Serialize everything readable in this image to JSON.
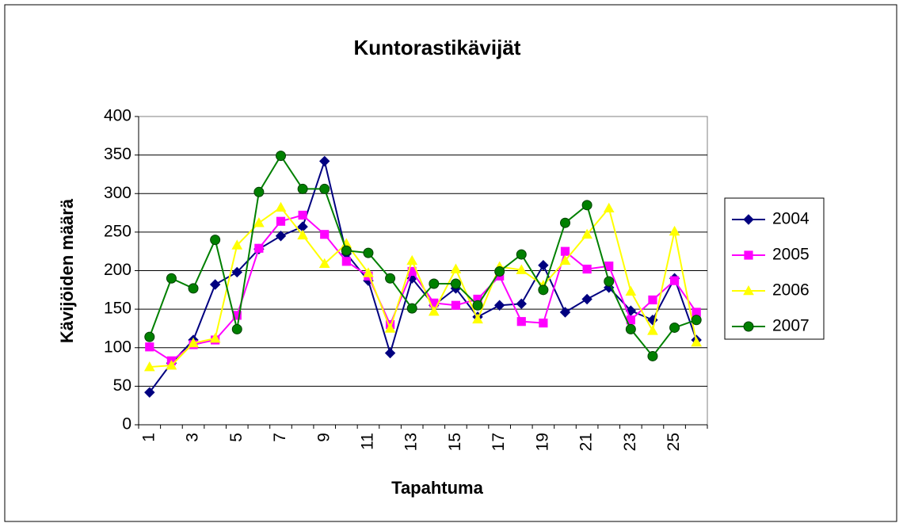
{
  "chart_data": {
    "type": "line",
    "title": "Kuntorastikävijät",
    "x_label": "Tapahtuma",
    "y_label": "Kävijöiden määrä",
    "categories": [
      1,
      null,
      3,
      null,
      5,
      null,
      7,
      null,
      9,
      null,
      11,
      null,
      13,
      null,
      15,
      null,
      17,
      null,
      19,
      null,
      21,
      null,
      23,
      null,
      25,
      null
    ],
    "series": [
      {
        "name": "2004",
        "color": "#000080",
        "marker": "diamond",
        "values": [
          42,
          80,
          110,
          182,
          198,
          228,
          245,
          257,
          342,
          222,
          187,
          93,
          190,
          155,
          177,
          140,
          155,
          157,
          207,
          146,
          163,
          178,
          148,
          136,
          190,
          110
        ]
      },
      {
        "name": "2005",
        "color": "#ff00ff",
        "marker": "square",
        "values": [
          101,
          83,
          104,
          110,
          142,
          229,
          264,
          272,
          247,
          212,
          193,
          130,
          199,
          158,
          155,
          163,
          193,
          134,
          132,
          225,
          202,
          206,
          136,
          162,
          187,
          146
        ]
      },
      {
        "name": "2006",
        "color": "#ffff00",
        "marker": "triangle",
        "values": [
          75,
          77,
          106,
          112,
          233,
          262,
          282,
          246,
          209,
          235,
          197,
          125,
          213,
          147,
          202,
          137,
          205,
          201,
          181,
          213,
          247,
          281,
          173,
          122,
          251,
          107
        ]
      },
      {
        "name": "2007",
        "color": "#008000",
        "marker": "circle",
        "values": [
          114,
          190,
          177,
          240,
          124,
          302,
          349,
          306,
          306,
          226,
          223,
          190,
          151,
          183,
          183,
          155,
          199,
          221,
          175,
          262,
          285,
          186,
          124,
          89,
          126,
          136
        ]
      }
    ],
    "ylim": [
      0,
      400
    ],
    "yticks": [
      0,
      50,
      100,
      150,
      200,
      250,
      300,
      350,
      400
    ],
    "grid": true,
    "legend": "right"
  }
}
